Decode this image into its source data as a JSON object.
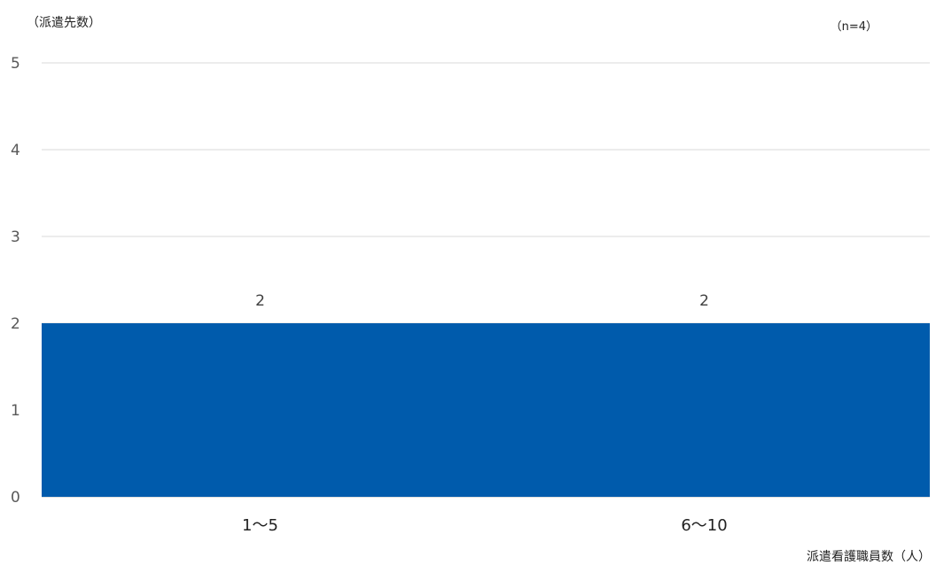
{
  "chart_data": {
    "type": "bar",
    "ylabel": "（派遣先数）",
    "xlabel": "派遣看護職員数（人）",
    "note": "（n=4）",
    "categories": [
      "1〜5",
      "6〜10"
    ],
    "series": [
      {
        "values": [
          2,
          2
        ],
        "color": "#005bac"
      }
    ],
    "data_labels": [
      "2",
      "2"
    ],
    "ylim": [
      0,
      5
    ],
    "yticks": [
      0,
      1,
      2,
      3,
      4,
      5
    ],
    "grid": true,
    "legend": "none"
  }
}
